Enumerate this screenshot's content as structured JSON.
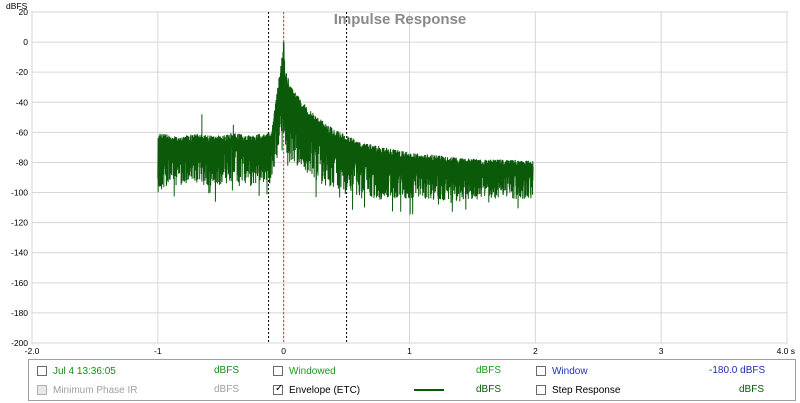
{
  "chart_data": {
    "type": "line",
    "title": "Impulse Response",
    "ylabel": "dBFS",
    "xlim": [
      -2.0,
      4.0
    ],
    "ylim": [
      -200,
      20
    ],
    "x_ticks": [
      "-2.0",
      "-1",
      "0",
      "1",
      "2",
      "3",
      "4.0 s"
    ],
    "y_ticks": [
      "20",
      "0",
      "-20",
      "-40",
      "-60",
      "-80",
      "-100",
      "-120",
      "-140",
      "-160",
      "-180",
      "-200"
    ],
    "grid": true,
    "markers": {
      "window_left_s": -0.12,
      "peak_s": 0.0,
      "window_right_s": 0.5
    },
    "series": [
      {
        "name": "Envelope (ETC)",
        "color": "#0a5a0a",
        "x": [
          -1.0,
          -0.9,
          -0.8,
          -0.7,
          -0.6,
          -0.5,
          -0.4,
          -0.3,
          -0.2,
          -0.1,
          0.0,
          0.01,
          0.05,
          0.1,
          0.2,
          0.3,
          0.4,
          0.5,
          0.6,
          0.8,
          1.0,
          1.2,
          1.4,
          1.6,
          1.8,
          1.98
        ],
        "upper": [
          -60,
          -62,
          -62,
          -61,
          -62,
          -62,
          -60,
          -62,
          -61,
          -60,
          0,
          -18,
          -28,
          -34,
          -45,
          -52,
          -58,
          -62,
          -66,
          -70,
          -73,
          -75,
          -77,
          -78,
          -78,
          -79
        ],
        "lower": [
          -100,
          -95,
          -96,
          -95,
          -96,
          -95,
          -96,
          -95,
          -95,
          -95,
          -60,
          -70,
          -78,
          -82,
          -88,
          -95,
          -98,
          -100,
          -102,
          -104,
          -104,
          -105,
          -106,
          -104,
          -104,
          -105
        ]
      }
    ]
  },
  "legend": {
    "row1": {
      "measurement_label": "Jul 4 13:36:05",
      "measurement_unit": "dBFS",
      "windowed_label": "Windowed",
      "windowed_unit": "dBFS",
      "window_label": "Window",
      "window_value": "-180.0 dBFS"
    },
    "row2": {
      "min_phase_label": "Minimum Phase IR",
      "min_phase_unit": "dBFS",
      "envelope_label": "Envelope (ETC)",
      "envelope_unit": "dBFS",
      "step_label": "Step Response",
      "step_unit": "dBFS"
    },
    "colors": {
      "measurement": "#1a8a1a",
      "windowed": "#1a9a1a",
      "window": "#1f2fb0",
      "disabled": "#a0a0a0",
      "envelope": "#0a5a0a"
    }
  }
}
